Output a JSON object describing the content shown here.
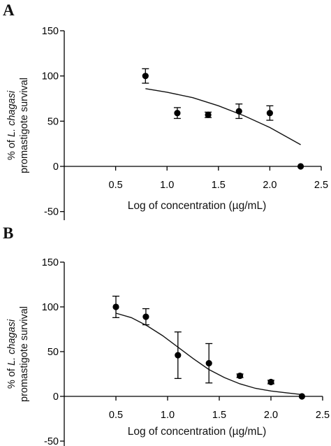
{
  "chart_data": [
    {
      "type": "scatter",
      "panel_label": "A",
      "ylabel_prefix": "% of ",
      "ylabel_species": "L. chagasi",
      "ylabel_line2": "promastigote survival",
      "xlabel": "Log of concentration (µg/mL)",
      "xlim": [
        0.0,
        2.5
      ],
      "ylim": [
        -50,
        150
      ],
      "x_ticks": [
        "0.5",
        "1.0",
        "1.5",
        "2.0",
        "2.5"
      ],
      "y_ticks": [
        "150",
        "100",
        "50",
        "0",
        "-50"
      ],
      "grid": false,
      "points": [
        {
          "x": 0.79,
          "y": 100,
          "err": 8
        },
        {
          "x": 1.1,
          "y": 59,
          "err": 6
        },
        {
          "x": 1.4,
          "y": 57,
          "err": 3
        },
        {
          "x": 1.7,
          "y": 61,
          "err": 8
        },
        {
          "x": 2.0,
          "y": 59,
          "err": 8
        },
        {
          "x": 2.3,
          "y": 0,
          "err": 0
        }
      ],
      "fit_curve": {
        "x": [
          0.79,
          1.0,
          1.25,
          1.5,
          1.75,
          2.0,
          2.3
        ],
        "y": [
          86,
          82,
          76,
          67,
          56,
          43,
          24
        ]
      }
    },
    {
      "type": "scatter",
      "panel_label": "B",
      "ylabel_prefix": "% of ",
      "ylabel_species": "L. chagasi",
      "ylabel_line2": "promastigote survival",
      "xlabel": "Log of concentration (µg/mL)",
      "xlim": [
        0.0,
        2.5
      ],
      "ylim": [
        -50,
        150
      ],
      "x_ticks": [
        "0.5",
        "1.0",
        "1.5",
        "2.0",
        "2.5"
      ],
      "y_ticks": [
        "150",
        "100",
        "50",
        "0",
        "-50"
      ],
      "grid": false,
      "points": [
        {
          "x": 0.5,
          "y": 100,
          "err": 12
        },
        {
          "x": 0.79,
          "y": 89,
          "err": 9
        },
        {
          "x": 1.1,
          "y": 46,
          "err": 26
        },
        {
          "x": 1.4,
          "y": 37,
          "err": 22
        },
        {
          "x": 1.7,
          "y": 23,
          "err": 2
        },
        {
          "x": 2.0,
          "y": 16,
          "err": 2
        },
        {
          "x": 2.3,
          "y": 0,
          "err": 0
        }
      ],
      "fit_curve": {
        "x": [
          0.5,
          0.65,
          0.8,
          0.95,
          1.1,
          1.25,
          1.4,
          1.55,
          1.7,
          1.85,
          2.0,
          2.15,
          2.3
        ],
        "y": [
          93,
          88,
          79,
          68,
          55,
          42,
          30,
          21,
          14,
          9,
          6,
          4,
          2
        ]
      }
    }
  ]
}
